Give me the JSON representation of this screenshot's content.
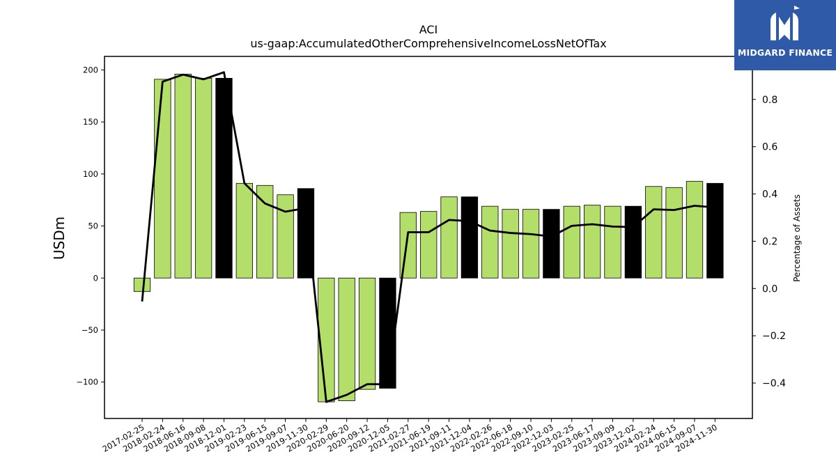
{
  "brand": {
    "name": "MIDGARD FINANCE",
    "background": "#2f5aa8",
    "text_color": "#ffffff",
    "icon": "midgard-logo-icon"
  },
  "colors": {
    "bar_default": "#b3de69",
    "bar_highlight": "#000000",
    "line": "#000000"
  },
  "chart_data": {
    "type": "bar",
    "title": "ACI",
    "subtitle": "us-gaap:AccumulatedOtherComprehensiveIncomeLossNetOfTax",
    "ylabel": "USDm",
    "y2label": "Percentage of Assets",
    "ylim": [
      -135,
      213
    ],
    "y2lim": [
      -0.55,
      0.982
    ],
    "yticks": [
      -100,
      -50,
      0,
      50,
      100,
      150,
      200
    ],
    "yticklabels": [
      "−100",
      "−50",
      "0",
      "50",
      "100",
      "150",
      "200"
    ],
    "y2ticks": [
      -0.4,
      -0.2,
      0.0,
      0.2,
      0.4,
      0.6,
      0.8
    ],
    "y2ticklabels": [
      "−0.4",
      "−0.2",
      "0.0",
      "0.2",
      "0.4",
      "0.6",
      "0.8"
    ],
    "grid": false,
    "legend": "none",
    "categories": [
      "2017-02-25",
      "2018-02-24",
      "2018-06-16",
      "2018-09-08",
      "2018-12-01",
      "2019-02-23",
      "2019-06-15",
      "2019-09-07",
      "2019-11-30",
      "2020-02-29",
      "2020-06-20",
      "2020-09-12",
      "2020-12-05",
      "2021-02-27",
      "2021-06-19",
      "2021-09-11",
      "2021-12-04",
      "2022-02-26",
      "2022-06-18",
      "2022-09-10",
      "2022-12-03",
      "2023-02-25",
      "2023-06-17",
      "2023-09-09",
      "2023-12-02",
      "2024-02-24",
      "2024-06-15",
      "2024-09-07",
      "2024-11-30"
    ],
    "series": [
      {
        "name": "USDm",
        "type": "bar",
        "values": [
          -13,
          191,
          196,
          192,
          192,
          91,
          89,
          80,
          86,
          -119,
          -118,
          -107,
          -106,
          63,
          64,
          78,
          78,
          69,
          66,
          66,
          66,
          69,
          70,
          69,
          69,
          88,
          87,
          93,
          91
        ],
        "highlight": [
          false,
          false,
          false,
          false,
          true,
          false,
          false,
          false,
          true,
          false,
          false,
          false,
          true,
          false,
          false,
          false,
          true,
          false,
          false,
          false,
          true,
          false,
          false,
          false,
          true,
          false,
          false,
          false,
          true
        ]
      },
      {
        "name": "Percentage of Assets",
        "type": "line",
        "axis": "right",
        "values": [
          -0.055,
          0.875,
          0.905,
          0.885,
          0.915,
          0.445,
          0.36,
          0.325,
          0.34,
          -0.48,
          -0.45,
          -0.405,
          -0.405,
          0.238,
          0.238,
          0.29,
          0.285,
          0.245,
          0.235,
          0.23,
          0.22,
          0.265,
          0.272,
          0.262,
          0.26,
          0.335,
          0.332,
          0.35,
          0.343
        ]
      }
    ]
  }
}
